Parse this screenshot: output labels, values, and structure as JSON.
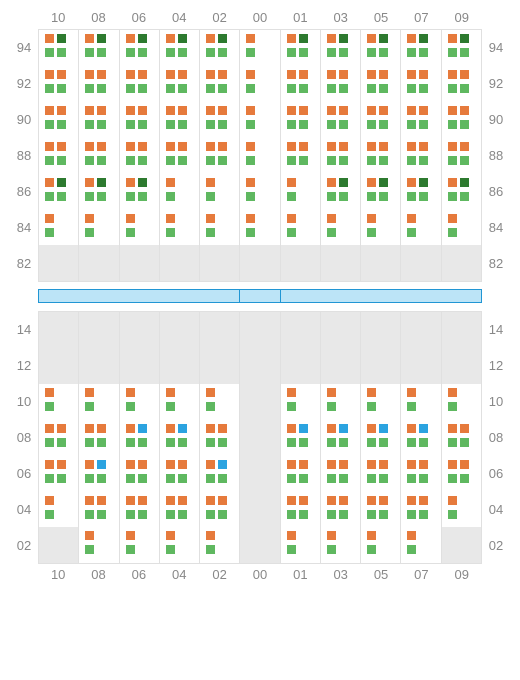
{
  "colors": {
    "orange": "#e67a3c",
    "green": "#5fb860",
    "darkgreen": "#2d7a2f",
    "blue": "#2ba3e0",
    "gray": "#e8e8e8",
    "border": "#e0e0e0",
    "text": "#888",
    "divider_fill": "#bce4f7",
    "divider_border": "#2196d4"
  },
  "cols": [
    "10",
    "08",
    "06",
    "04",
    "02",
    "00",
    "01",
    "03",
    "05",
    "07",
    "09"
  ],
  "top": {
    "rows": [
      "94",
      "92",
      "90",
      "88",
      "86",
      "84",
      "82"
    ],
    "cells": [
      [
        [
          "o",
          "d",
          "g",
          "g"
        ],
        [
          "o",
          "d",
          "g",
          "g"
        ],
        [
          "o",
          "d",
          "g",
          "g"
        ],
        [
          "o",
          "d",
          "g",
          "g"
        ],
        [
          "o",
          "d",
          "g",
          "g"
        ],
        [
          "o",
          "",
          "g",
          ""
        ],
        [
          "o",
          "d",
          "g",
          "g"
        ],
        [
          "o",
          "d",
          "g",
          "g"
        ],
        [
          "o",
          "d",
          "g",
          "g"
        ],
        [
          "o",
          "d",
          "g",
          "g"
        ],
        [
          "o",
          "d",
          "g",
          "g"
        ]
      ],
      [
        [
          "o",
          "o",
          "g",
          "g"
        ],
        [
          "o",
          "o",
          "g",
          "g"
        ],
        [
          "o",
          "o",
          "g",
          "g"
        ],
        [
          "o",
          "o",
          "g",
          "g"
        ],
        [
          "o",
          "o",
          "g",
          "g"
        ],
        [
          "o",
          "",
          "g",
          ""
        ],
        [
          "o",
          "o",
          "g",
          "g"
        ],
        [
          "o",
          "o",
          "g",
          "g"
        ],
        [
          "o",
          "o",
          "g",
          "g"
        ],
        [
          "o",
          "o",
          "g",
          "g"
        ],
        [
          "o",
          "o",
          "g",
          "g"
        ]
      ],
      [
        [
          "o",
          "o",
          "g",
          "g"
        ],
        [
          "o",
          "o",
          "g",
          "g"
        ],
        [
          "o",
          "o",
          "g",
          "g"
        ],
        [
          "o",
          "o",
          "g",
          "g"
        ],
        [
          "o",
          "o",
          "g",
          "g"
        ],
        [
          "o",
          "",
          "g",
          ""
        ],
        [
          "o",
          "o",
          "g",
          "g"
        ],
        [
          "o",
          "o",
          "g",
          "g"
        ],
        [
          "o",
          "o",
          "g",
          "g"
        ],
        [
          "o",
          "o",
          "g",
          "g"
        ],
        [
          "o",
          "o",
          "g",
          "g"
        ]
      ],
      [
        [
          "o",
          "o",
          "g",
          "g"
        ],
        [
          "o",
          "o",
          "g",
          "g"
        ],
        [
          "o",
          "o",
          "g",
          "g"
        ],
        [
          "o",
          "o",
          "g",
          "g"
        ],
        [
          "o",
          "o",
          "g",
          "g"
        ],
        [
          "o",
          "",
          "g",
          ""
        ],
        [
          "o",
          "o",
          "g",
          "g"
        ],
        [
          "o",
          "o",
          "g",
          "g"
        ],
        [
          "o",
          "o",
          "g",
          "g"
        ],
        [
          "o",
          "o",
          "g",
          "g"
        ],
        [
          "o",
          "o",
          "g",
          "g"
        ]
      ],
      [
        [
          "o",
          "d",
          "g",
          "g"
        ],
        [
          "o",
          "d",
          "g",
          "g"
        ],
        [
          "o",
          "d",
          "g",
          "g"
        ],
        [
          "o",
          "",
          "g",
          ""
        ],
        [
          "o",
          "",
          "g",
          ""
        ],
        [
          "o",
          "",
          "g",
          ""
        ],
        [
          "o",
          "",
          "g",
          ""
        ],
        [
          "o",
          "d",
          "g",
          "g"
        ],
        [
          "o",
          "d",
          "g",
          "g"
        ],
        [
          "o",
          "d",
          "g",
          "g"
        ],
        [
          "o",
          "d",
          "g",
          "g"
        ]
      ],
      [
        [
          "o",
          "",
          "g",
          ""
        ],
        [
          "o",
          "",
          "g",
          ""
        ],
        [
          "o",
          "",
          "g",
          ""
        ],
        [
          "o",
          "",
          "g",
          ""
        ],
        [
          "o",
          "",
          "g",
          ""
        ],
        [
          "o",
          "",
          "g",
          ""
        ],
        [
          "o",
          "",
          "g",
          ""
        ],
        [
          "o",
          "",
          "g",
          ""
        ],
        [
          "o",
          "",
          "g",
          ""
        ],
        [
          "o",
          "",
          "g",
          ""
        ],
        [
          "o",
          "",
          "g",
          ""
        ]
      ],
      [
        [
          "E"
        ],
        [
          "E"
        ],
        [
          "E"
        ],
        [
          "E"
        ],
        [
          "E"
        ],
        [
          "E"
        ],
        [
          "E"
        ],
        [
          "E"
        ],
        [
          "E"
        ],
        [
          "E"
        ],
        [
          "E"
        ]
      ]
    ]
  },
  "bottom": {
    "rows": [
      "14",
      "12",
      "10",
      "08",
      "06",
      "04",
      "02"
    ],
    "cells": [
      [
        [
          "E"
        ],
        [
          "E"
        ],
        [
          "E"
        ],
        [
          "E"
        ],
        [
          "E"
        ],
        [
          "E"
        ],
        [
          "E"
        ],
        [
          "E"
        ],
        [
          "E"
        ],
        [
          "E"
        ],
        [
          "E"
        ]
      ],
      [
        [
          "E"
        ],
        [
          "E"
        ],
        [
          "E"
        ],
        [
          "E"
        ],
        [
          "E"
        ],
        [
          "E"
        ],
        [
          "E"
        ],
        [
          "E"
        ],
        [
          "E"
        ],
        [
          "E"
        ],
        [
          "E"
        ]
      ],
      [
        [
          "o",
          "",
          "g",
          ""
        ],
        [
          "o",
          "",
          "g",
          ""
        ],
        [
          "o",
          "",
          "g",
          ""
        ],
        [
          "o",
          "",
          "g",
          ""
        ],
        [
          "o",
          "",
          "g",
          ""
        ],
        [
          "E"
        ],
        [
          "o",
          "",
          "g",
          ""
        ],
        [
          "o",
          "",
          "g",
          ""
        ],
        [
          "o",
          "",
          "g",
          ""
        ],
        [
          "o",
          "",
          "g",
          ""
        ],
        [
          "o",
          "",
          "g",
          ""
        ]
      ],
      [
        [
          "o",
          "o",
          "g",
          "g"
        ],
        [
          "o",
          "o",
          "g",
          "g"
        ],
        [
          "o",
          "b",
          "g",
          "g"
        ],
        [
          "o",
          "b",
          "g",
          "g"
        ],
        [
          "o",
          "o",
          "g",
          "g"
        ],
        [
          "E"
        ],
        [
          "o",
          "b",
          "g",
          "g"
        ],
        [
          "o",
          "b",
          "g",
          "g"
        ],
        [
          "o",
          "b",
          "g",
          "g"
        ],
        [
          "o",
          "b",
          "g",
          "g"
        ],
        [
          "o",
          "o",
          "g",
          "g"
        ]
      ],
      [
        [
          "o",
          "o",
          "g",
          "g"
        ],
        [
          "o",
          "b",
          "g",
          "g"
        ],
        [
          "o",
          "o",
          "g",
          "g"
        ],
        [
          "o",
          "o",
          "g",
          "g"
        ],
        [
          "o",
          "b",
          "g",
          "g"
        ],
        [
          "E"
        ],
        [
          "o",
          "o",
          "g",
          "g"
        ],
        [
          "o",
          "o",
          "g",
          "g"
        ],
        [
          "o",
          "o",
          "g",
          "g"
        ],
        [
          "o",
          "o",
          "g",
          "g"
        ],
        [
          "o",
          "o",
          "g",
          "g"
        ]
      ],
      [
        [
          "o",
          "",
          "g",
          ""
        ],
        [
          "o",
          "o",
          "g",
          "g"
        ],
        [
          "o",
          "o",
          "g",
          "g"
        ],
        [
          "o",
          "o",
          "g",
          "g"
        ],
        [
          "o",
          "o",
          "g",
          "g"
        ],
        [
          "E"
        ],
        [
          "o",
          "o",
          "g",
          "g"
        ],
        [
          "o",
          "o",
          "g",
          "g"
        ],
        [
          "o",
          "o",
          "g",
          "g"
        ],
        [
          "o",
          "o",
          "g",
          "g"
        ],
        [
          "o",
          "",
          "g",
          ""
        ]
      ],
      [
        [
          "E"
        ],
        [
          "o",
          "",
          "g",
          ""
        ],
        [
          "o",
          "",
          "g",
          ""
        ],
        [
          "o",
          "",
          "g",
          ""
        ],
        [
          "o",
          "",
          "g",
          ""
        ],
        [
          "E"
        ],
        [
          "o",
          "",
          "g",
          ""
        ],
        [
          "o",
          "",
          "g",
          ""
        ],
        [
          "o",
          "",
          "g",
          ""
        ],
        [
          "o",
          "",
          "g",
          ""
        ],
        [
          "E"
        ]
      ]
    ]
  }
}
